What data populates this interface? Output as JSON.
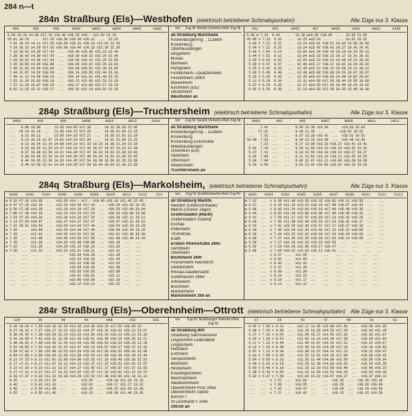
{
  "page_header": "284 n—t",
  "class_note": "Alle Züge nur 3. Klasse",
  "sections": [
    {
      "route_num": "284n",
      "route_name": "Straßburg (Els)—Westhofen",
      "subtitle": "(elektrisch betriebene Schmalspurbahn)",
      "left_cols": [
        "454",
        "456",
        "458",
        "W460",
        "W462",
        "W464",
        "W466",
        "S466"
      ],
      "right_cols": [
        "451",
        "453",
        "W455",
        "457",
        "W459",
        "S463",
        "W463",
        "S465"
      ],
      "km_col": "km",
      "header_center": "Zug Nr  Straßb.Verkehrs-Betr  Zug Nr",
      "stations": [
        {
          "name": "Straßburg Markthalle",
          "bold": true,
          "note": "ab"
        },
        {
          "name": "Kronenburgerring .. 1128km"
        },
        {
          "name": "Kronenburg"
        },
        {
          "name": "Oberhausbergen"
        },
        {
          "name": "Dingsheim"
        },
        {
          "name": "Musau"
        },
        {
          "name": "Ittenheim"
        },
        {
          "name": "Hurtigheim"
        },
        {
          "name": "Fürdenheim—Quatzenheim"
        },
        {
          "name": "Fessenheim          284m"
        },
        {
          "name": "Marienheim"
        },
        {
          "name": "Kirchheim (Els)"
        },
        {
          "name": "Odratzheim"
        },
        {
          "name": "Westhofen",
          "bold": true,
          "note": "an"
        }
      ],
      "left_times": " 6.50 10.10 14.00 V17.15 v18.45 v19.20 v20.- v21.50 22.15\n V5.01 10.23  ...  V17.25 v18.58 v19.30 v20.12  ...  22.25\n  7.01 10.24 14.11 V17.26 v18.59 v19.31 v20.13 v22.01 22.26\n  7.10 10.33 14.20 V17.35 v19.08 v19.40 v20.22 v22.10 22.36\n  7.18 10.41 14.28 V17.43  ...  v19.48 v20.30 v22.18 22.44\n  7.20 10.43 14.30 V17.45  ...  v19.50 v20.32 v22.20 22.46\n  7.29 10.52 14.39 V17.54  ...  v19.59 v20.41 v22.29 22.55\n  7.35 10.58 14.45 V18.00  ...  v20.05 v20.47 v22.35 23.01\n  7.39 11.02 14.49 V18.04  ...  v20.09 v20.51 v22.39 23.05\n  7.44 11.07 14.54 V18.09  ...  v20.14 v20.56 v22.44 23.10\n  7.49 11.12 14.59 V18.14  ...  v20.19 v21.01 v22.49 23.15\n  7.53 11.16 15.03 V18.18  ...  v20.23 v21.05 v22.53 23.19\n  7.57 11.20 15.07 V18.22  ...  v20.27 v21.09 v22.57 23.23\n  8.02 11.25 15.12 V18.27  ...  v20.32 v21.14 v23.02 23.28",
      "right_times": " 6.08 w 7.33  9.44   ...  13.38 w16.05 V19.05  ...  20.05 21.05\n V6.05 V 7.23  9.33   ...  13.25 w15.53  ...   ...  19.52 20.52\n  6.03 V 7.21  9.31   ...  13.23 w15.51 V18.51 19.36 19.50 20.50\n  5.54 V 7.12  9.22   ...  13.14 w15.42 V18.42 19.27 19.41 20.41\n  5.46 V 7.04  9.14   ...  13.06 w15.34 V18.34 19.19 19.33 20.33\n  5.44 V 7.02  9.12   ...  13.04 w15.32 V18.32 19.17 19.31 20.31\n  5.35 V 6.53  9.03   ...  12.55 w15.23 V18.23 19.08 19.22 20.22\n  5.29 V 6.47  8.57   ...  12.49 w15.17 V18.17 19.02 19.16 20.16\n  5.25 V 6.43  8.53   ...  12.45 w15.13 V18.13 18.58 19.12 20.12\n  5.20 V 6.38  8.48   ...  12.40 w15.08 V18.08 18.53 19.07 20.07\n  5.15 V 6.33  8.43   ...  12.35 w15.03 V18.03 18.48 19.02 20.02\n  5.11 V 6.29  8.39   ...  12.31 w14.59 V17.59 18.44 18.58 19.58\n  5.07 V 6.25  8.35   ...  12.27 w14.55 V17.55 18.40 18.54 19.54\n  5.02 V 6.20  8.30   ...  12.22 w14.50 V17.50 18.35 18.49 19.49"
    },
    {
      "route_num": "284p",
      "route_name": "Straßburg (Els)—Truchtersheim",
      "subtitle": "(elektrisch betriebene Schmalspurbahn)",
      "left_cols": [
        "W402",
        "404",
        "406",
        "W408",
        "W410",
        "W412",
        "S414"
      ],
      "right_cols": [
        "W401",
        "403",
        "405",
        "W407",
        "W409",
        "W411",
        "S413"
      ],
      "km_col": "km",
      "header_center": "Zug Nr  Straßb.Verkehrs-Betr  Zug Nr",
      "stations": [
        {
          "name": "Straßburg Markthalle",
          "bold": true,
          "note": "ab"
        },
        {
          "name": "Kronenburgerring .. 1128km"
        },
        {
          "name": "Kronenburg"
        },
        {
          "name": "Kronenburg-Gutsmühle"
        },
        {
          "name": "Mittelhausbergen"
        },
        {
          "name": "Griesheim (Els)"
        },
        {
          "name": "Stutzheim"
        },
        {
          "name": "Offenheim"
        },
        {
          "name": "Wiwersheim"
        },
        {
          "name": "Truchtersheim",
          "bold": true,
          "note": "an"
        }
      ],
      "left_times": "  ...   8.00 10.00  ...  13.45 v14.05 V17.10  ...  19.15 20.50 22.05\n  ...  V8.10 10.10  ...  13.55 v14.15 V17.20  ...  19.25 21.00 22.15\n  ...   8.11 10.11  ...  13.56 v14.16 V17.21  ...  19.26 21.01 22.16\n  ...   8.16 10.16 12.07 14.01 v14.16 V17.26  ...  19.31 21.06 22.21\n  ...   8.23 10.24 12.14 14.08 v14.23 V17.33 18.18 19.38 21.14 22.29\n  ...   8.32 10.33 12.24 14.17 v14.33 V17.42 18.27 19.47 21.23 22.38\n  ...   8.37 10.38 12.29 14.22 v14.38 V17.47 18.32 19.52 21.28 22.43\n  ...   8.39 10.40 12.31 14.24 v14.40 V17.49 18.34 19.54 21.30 22.45\n  ...   8.44 10.45 12.36 14.29 v14.45 V17.54 18.39 19.59 21.35 22.50\n  ...   8.49 10.50 12.41 14.34 v14.50 V17.59 18.44 20.04 21.40 22.55",
      "right_times": "  ...   7.42  ...   ...   9.49 13.30 v16.54  ...  v19.03 20.03\n  ...  V7.32  ...   ...   9.38 13.19  ...   ...  v18.52 19.52\n  ...   7.31  ...   ...   9.37 13.18 v16.42  ...  v18.51 19.51\n X9.40  7.28  ...   ...   9.34 13.15 v16.39  ...  v18.48 19.48\n  ...   7.23  ...   ...   9.27 13.08 v16.32 v18.27 v18.41 19.41\n  5.42  7.16  ...   ...   9.18 12.59 v16.23 v18.18 v18.32 19.32\n  5.37  7.11  ...   ...   9.13 12.54 v16.18 v18.13 v18.27 19.27\n  5.34  7.09  ...   ...   9.11 12.52 v16.16 v18.11 v18.25 19.25\n  5.29  7.04  ...   ...   9.06 12.47 v16.11 v18.06 v18.20 19.20\n  5.24  6.59  ...   ...   9.01 12.42 v16.06 v18.01 v18.15 19.15"
    },
    {
      "route_num": "284q",
      "route_name": "Straßburg (Els)—Markolsheim,",
      "subtitle": "(elektrisch betriebene Schmalspurbahn)",
      "left_cols": [
        "W102",
        "S102",
        "S104",
        "W106",
        "S106",
        "W108",
        "W110",
        "W112",
        "S112",
        "114"
      ],
      "right_cols": [
        "W101",
        "W103",
        "S103",
        "W105",
        "S105",
        "W107",
        "W109",
        "W111",
        "S111",
        "S113"
      ],
      "km_col": "km",
      "header_center": "Zug Nr StraßbVerkehrs-Betr Zug Nr",
      "stations": [
        {
          "name": "Straßburg Markth.",
          "bold": true,
          "note": "ab"
        },
        {
          "name": "Neudorf (Unterschmiede)"
        },
        {
          "name": "Illkirch (Grüner Jäger)"
        },
        {
          "name": "Grafenstaden (Markt)",
          "bold": true
        },
        {
          "name": "Grafenstaden Südend"
        },
        {
          "name": "Eschau"
        },
        {
          "name": "Plobsheim"
        },
        {
          "name": "Thumenau"
        },
        {
          "name": "Krafft"
        },
        {
          "name": "Erstein Rheinstraße 284s",
          "bold": true
        },
        {
          "name": "Gerstheim"
        },
        {
          "name": "Obenheim"
        },
        {
          "name": "Boofsheim 284t",
          "bold": true
        },
        {
          "name": "Friesenheim-Neunkirch"
        },
        {
          "name": "Diebolsheim"
        },
        {
          "name": "Rhinau-Daubensand"
        },
        {
          "name": "Sundhausen 286d"
        },
        {
          "name": "Artolsheim"
        },
        {
          "name": "Boozheim"
        },
        {
          "name": "Mackenheim"
        },
        {
          "name": "Markolsheim 286",
          "bold": true,
          "note": "an"
        }
      ],
      "left_times": "w 6.32 V7.16 v10.05  ...  v13.05 v14.- v17.- v18.45 v20.10 v21.45 22.45\nw 6.47 V7.26 v10.20  ...  v13.20 v14.10 V17.10  ...  v20.20 v21.55 22.55\nw 6.56 V7.36 v10.29  ...  v13.29 v14.19 V17.19  ...  v20.29 v22.04 23.04\nw 7.00 V7.40 v10.33  ...  v13.33 v14.23 V17.23  ...  v20.33 v22.08 23.08\nw 7.03 V7.43 v10.36  ...  v13.36 v14.26 V17.26  ...  v20.36 v22.11 23.11\nw 7.14 V7.54 v10.47  ...  v13.47 v14.37 V17.37  ...  v20.47 v22.22 23.22\nw 7.21 V8.01 v10.54  ...  v13.54 v14.44 V17.44  ...  v20.54 v22.29 23.29\nw 7.26  ...  v10.59  ...  v13.59 v14.49 V17.49  ...  v20.59 v22.34 23.34\nw 7.28  ...  v11.01  ...  v14.01 v14.51 V17.51  ...  v21.01 v22.36 23.36\nw 7.35  ...  v11.08  ...  v14.08 v14.58 V17.58  ...  v21.08 v22.43 23.43\nw 7.45  ...  v11.18  ...  v14.18 v15.08 V18.08  ...  v21.18  ...   ...\nw 7.52  ...  v11.25  ...  v14.25 v15.15 V18.15  ...  v21.25  ...   ...\nw 7.58  ...  v11.31  ...  v14.31 v15.21 V18.21  ...  v21.31  ...   ...\n  ...   ...   ...    ...   ...   v15.28 V18.28  ...  v21.38  ...   ...\n  ...   ...   ...    ...   ...   v15.33 V18.33  ...  v21.43  ...   ...\n  ...   ...   ...    ...   ...   v15.42 V18.42  ...  v21.52  ...   ...\n  ...   ...   ...    ...   ...   v15.48 V18.48  ...  v21.58  ...   ...\n  ...   ...   ...    ...   ...   v15.55 V18.55  ...  v22.05  ...   ...\n  ...   ...   ...    ...   ...   v16.01 V19.01  ...  v22.11  ...   ...\n  ...   ...   ...    ...   ...   v16.06 V19.06  ...  v22.16  ...   ...\n  ...   ...   ...    ...   ...   v16.12 V19.12  ...  v22.22  ...   ...",
      "right_times": "w 7.12  ...  v 8.30 v11.48 v13.28 v16.32 v18.02 v19.11 v19.58  ...   ...\nw 6.57  ...  v 8.15 v11.33 v13.13 v16.18 v17.48 v18.57 v19.43  ...   ...\nw 6.48  ...  v 8.06 v11.24 v13.04 v16.10 v17.40 v18.49 v19.35  ...   ...\nw 6.44  ...  v 8.02 v11.20 v13.00 v16.06 v17.36 v18.45 v19.31  ...   ...\nw 6.41  ...  v 7.59 v11.17 v12.57 v16.03 v17.33 v18.42 v19.28  ...   ...\nw 6.30  ...  v 7.48 v11.06 v12.46 v15.53 v17.23 v18.32 v19.17  ...   ...\nw 6.23  ...  v 7.41 v10.59 v12.39 v15.47 v17.17 v18.27 v19.10  ...   ...\nw 6.18  ...  v 7.36 v10.54 v12.34 v15.42 v17.12 v18.22 v19.05  ...   ...\nw 6.16  ...  v 7.34 v10.52 v12.32 v15.40 v17.10 v18.20 v19.03  ...   ...\nw 6.09  ...  v 7.27 v10.45 v12.25 v15.33 v17.03 v18.14 v18.56  ...   ...\nw 5.59  ...  v 7.17 v10.35 v12.15 v15.23 v16.53  ...   ...    ...   ...\nw 5.52  ...  v 7.10 v10.28 v12.08 v15.17 v16.47  ...   ...    ...   ...\nw 5.46  ...  v 7.04 v10.22 v12.02 v15.11 v16.41  ...   ...    ...   ...\n  ...   ...  v 6.57  ...  v11.55  ...   ...    ...   ...    ...   ...\n  ...   ...  v 6.52  ...  v11.50  ...   ...    ...   ...    ...   ...\n  ...   ...  v 6.43  ...  v11.41  ...   ...    ...   ...    ...   ...\n  ...   ...  v 6.37  ...  v11.35  ...   ...    ...   ...    ...   ...\n  ...   ...  v 6.30  ...  v11.28  ...   ...    ...   ...    ...   ...\n  ...   ...  v 6.24  ...  v11.22  ...   ...    ...   ...    ...   ...\n  ...   ...  v 6.19  ...  v11.17  ...   ...    ...   ...    ...   ...\n  ...   ...  v 6.13  ...  v11.11  ...   ...    ...   ...    ...   ..."
    },
    {
      "route_num": "284r",
      "route_name": "Straßburg (Els)—Oberehnheim—Ottrott",
      "subtitle": "(elektrisch betriebene Schmalspurbahn)",
      "left_cols": [
        "S34",
        "36",
        "40",
        "44",
        "W48",
        "S52",
        "S56"
      ],
      "right_cols": [
        "37",
        "39",
        "43",
        "47",
        "49",
        "51",
        "53"
      ],
      "km_col": "km",
      "header_center": "Zug Nr  Straßburger Verkehrs-Betr  Zug Nr",
      "stations": [
        {
          "name": "Straßburg Bhf",
          "bold": true,
          "note": "ab"
        },
        {
          "name": "Straßburg Sahnmeckerei"
        },
        {
          "name": "Lingolsheim Lederfabrik"
        },
        {
          "name": "Lingolsheim"
        },
        {
          "name": "Holzheim"
        },
        {
          "name": "Entzheim"
        },
        {
          "name": "Geispolsheim"
        },
        {
          "name": "Blösheim"
        },
        {
          "name": "Hindisheim"
        },
        {
          "name": "Krautergersheim"
        },
        {
          "name": "Meistratzheim"
        },
        {
          "name": "Niederehnheim"
        },
        {
          "name": "Oberehnheim Post 286a"
        },
        {
          "name": "Oberehnheim Spitze"
        },
        {
          "name": "Börsch ◊"
        },
        {
          "name": "St Leonhardt ◊   284s"
        },
        {
          "name": "Ottrott",
          "bold": true,
          "note": "an"
        }
      ],
      "left_times": "  5.20 v6.24 v 7.20 v10.10 12.15 v13.15 v14.40 v16.25 v17.55 v20.05 22.-\n  5.27 v6.31 v 7.27 v10.17 12.22 v13.22 v14.47 v16.32 v18.02 v20.12 22.07\n  5.38 v6.42 v 7.38 v10.28 12.33 v13.33 v14.58 v16.43 v18.13 v20.23 22.18\n  5.41 v6.45 v 7.41 v10.31 12.36 v13.36 v15.01 v16.46 v18.16 v20.26 22.21\n  5.48 v6.52 v 7.48 v10.38 12.43 v13.43 v15.08 v16.53 v18.23 v20.33 22.28\n  5.52 v6.56 v 7.52 v10.42 12.47 v13.47 v15.12 v16.57 v18.27 v20.37 22.32\n  5.58 v7.02 v 7.58 v10.48 12.53 v13.53 v15.18 v17.03 v18.33 v20.43 22.38\n  6.04 v7.08 v 8.04 v10.54 12.59 v13.59 v15.24 v17.09 v18.39 v20.49 22.44\n  6.11 v7.15 v 8.11 v11.01 13.06 v14.06 v15.31 v17.16 v18.46 v20.56 22.51\n  6.17 v7.21 v 8.17 v11.07 13.12 v14.12 v15.37 v17.22 v18.52 v21.02 22.57\n  6.22 v7.26 v 8.22 v11.12 13.17 v14.17 v15.42 v17.27 v18.57 v21.07 23.02\n  6.27 v7.31 v 8.27 v11.17 13.22 v14.22 v15.47 v17.32 v19.02 v21.12 23.07\n  6.33 v7.37 v 8.33 v11.23 13.28 v14.28 v15.53 v17.38 v19.08 v21.18 23.13\n  6.35  ...  v 8.35 v11.25  ...   ...  v15.55  ...  v19.10 v21.20 23.15\n  6.42  ...  v 8.42 v11.32  ...   ...  v16.02  ...  v19.17 v21.27 23.22\n  6.50  ...  v 8.50 v11.40  ...   ...  v16.10  ...  v19.25 v21.35 23.30\n  6.55  ...  v 8.55 v11.45  ...   ...  v16.15  ...  v19.30 v21.40 23.35",
      "right_times": "  6.45 v 7.50 v 9.12  ...  v12.17 13.35 v15.00 v17.50  ...  v19.50 v21.25\n  6.38 v 7.43 v 9.05  ...  v12.10 13.28 v14.53 v17.43  ...  v19.43 v21.18\n  6.27 v 7.32 v 8.54  ...  v11.59 13.17 v14.42 v17.32  ...  v19.32 v21.07\n  6.24 v 7.29 v 8.51  ...  v11.56 13.14 v14.39 v17.29  ...  v19.29 v21.04\n  6.17 v 7.22 v 8.44  ...  v11.49 13.07 v14.32 v17.22  ...  v19.22 v20.57\n  6.13 v 7.18 v 8.40  ...  v11.45 13.03 v14.28 v17.18  ...  v19.18 v20.53\n  6.07 v 7.12 v 8.34  ...  v11.39 12.57 v14.22 v17.12  ...  v19.12 v20.47\n  6.01 v 7.06 v 8.28  ...  v11.33 12.51 v14.16 v17.06  ...  v19.06 v20.41\n  5.54 v 6.59 v 8.21  ...  v11.26 12.44 v14.09 v16.59  ...  v18.59 v20.34\n  5.48 v 6.53 v 8.15  ...  v11.20 12.38 v14.03 v16.53  ...  v18.53 v20.28\n  5.43 v 6.48 v 8.10  ...  v11.15 12.33 v13.58 v16.48  ...  v18.48 v20.23\n  5.38 v 6.43 v 8.05  ...  v11.10 12.28 v13.53 v16.43  ...  v18.43 v20.18\n  5.32 v 6.37 v 7.59  ...  v11.04 12.22 v13.47 v16.37  ...  v18.37 v20.12\n  ...   ...  v 7.57  ...  v11.02  ...   ...  v16.35  ...  v18.35 v20.10\n  ...   ...  v 7.50  ...  v10.55  ...   ...  v16.28  ...  v18.28 v20.03\n  ...   ...  v 7.42  ...  v10.47  ...   ...  v16.20  ...  v18.20 v19.55\n  ...   ...  v 7.37  ...  v10.42  ...   ...  v16.15  ...  v18.15 v19.50"
    }
  ]
}
